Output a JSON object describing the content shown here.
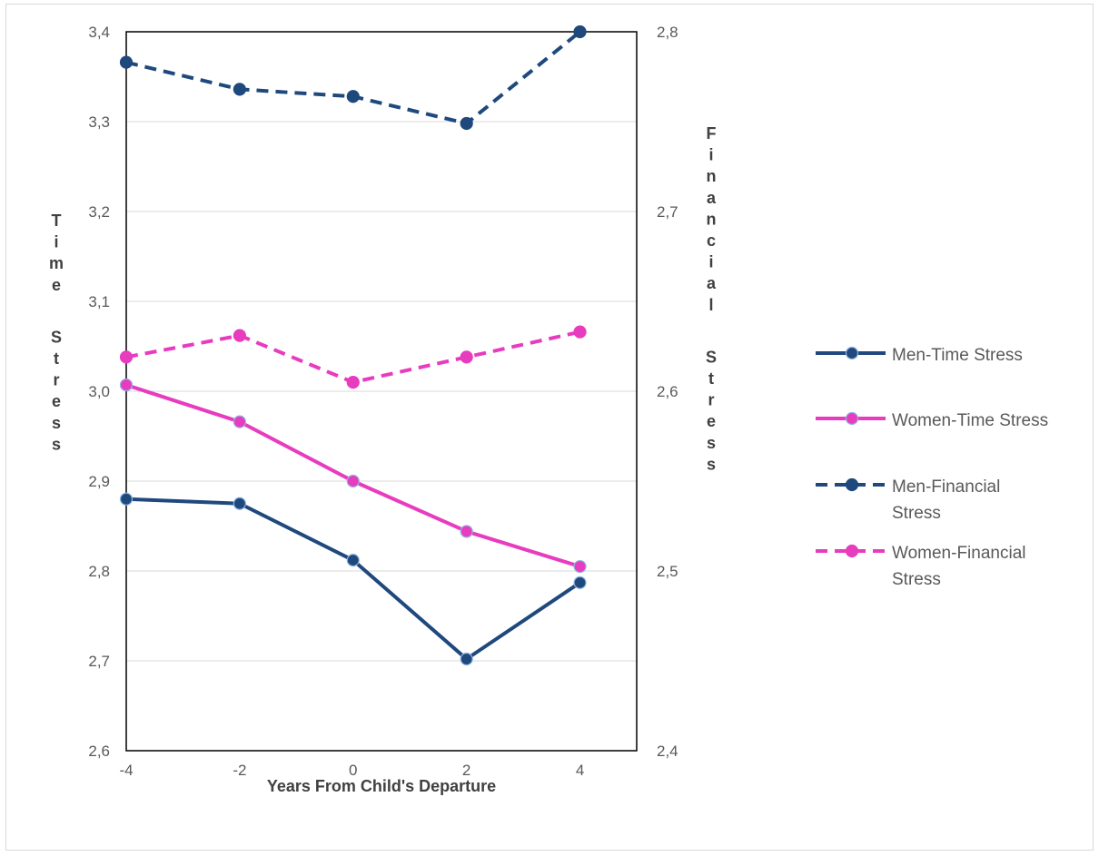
{
  "chart_data": {
    "type": "line",
    "x": [
      -4,
      -2,
      0,
      2,
      4
    ],
    "xlabel": "Years From Child's Departure",
    "xlim": [
      -4,
      5
    ],
    "x_tick_labels": [
      "-4",
      "-2",
      "0",
      "2",
      "4"
    ],
    "y_left": {
      "label": "Time Stress",
      "ylim": [
        2.6,
        3.4
      ],
      "tick_labels": [
        "2,6",
        "2,7",
        "2,8",
        "2,9",
        "3,0",
        "3,1",
        "3,2",
        "3,3",
        "3,4"
      ]
    },
    "y_right": {
      "label": "Financial Stress",
      "ylim": [
        2.4,
        2.8
      ],
      "tick_labels": [
        "2,4",
        "2,5",
        "2,6",
        "2,7",
        "2,8"
      ]
    },
    "grid": true,
    "legend_position": "right",
    "series": [
      {
        "name": "Men-Time Stress",
        "axis": "left",
        "style": "solid",
        "color": "#1f497d",
        "values": [
          2.88,
          2.875,
          2.812,
          2.702,
          2.787
        ]
      },
      {
        "name": "Women-Time Stress",
        "axis": "left",
        "style": "solid",
        "color": "#e83cbf",
        "values": [
          3.007,
          2.966,
          2.9,
          2.844,
          2.805
        ]
      },
      {
        "name": "Men-Financial Stress",
        "axis": "right",
        "style": "dashed",
        "color": "#1f497d",
        "values": [
          2.783,
          2.768,
          2.764,
          2.749,
          2.8
        ]
      },
      {
        "name": "Women-Financial Stress",
        "axis": "right",
        "style": "dashed",
        "color": "#e83cbf",
        "values": [
          2.619,
          2.631,
          2.605,
          2.619,
          2.633
        ]
      }
    ]
  }
}
